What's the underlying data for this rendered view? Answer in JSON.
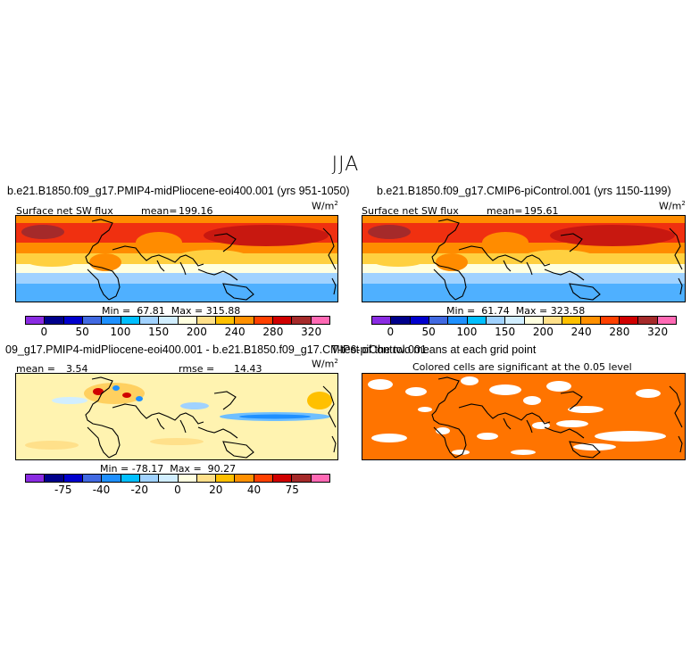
{
  "season": "JJA",
  "panels": {
    "p1": {
      "case": "b.e21.B1850.f09_g17.PMIP4-midPliocene-eoi400.001 (yrs 951-1050)",
      "variable": "Surface net SW flux",
      "mean_label": "mean=",
      "mean_value": "199.16",
      "units": "W/m",
      "units_exp": "2",
      "min_label": "Min =",
      "min_value": "67.81",
      "max_label": "Max =",
      "max_value": "315.88"
    },
    "p2": {
      "case": "b.e21.B1850.f09_g17.CMIP6-piControl.001 (yrs 1150-1199)",
      "variable": "Surface net SW flux",
      "mean_label": "mean=",
      "mean_value": "195.61",
      "units": "W/m",
      "units_exp": "2",
      "min_label": "Min =",
      "min_value": "61.74",
      "max_label": "Max =",
      "max_value": "323.58"
    },
    "p3": {
      "case": "09_g17.PMIP4-midPliocene-eoi400.001 - b.e21.B1850.f09_g17.CMIP6-piControl.001",
      "mean_label": "mean =",
      "mean_value": "3.54",
      "rmse_label": "rmse =",
      "rmse_value": "14.43",
      "units": "W/m",
      "units_exp": "2",
      "min_label": "Min =",
      "min_value": "-78.17",
      "max_label": "Max =",
      "max_value": "90.27"
    },
    "p4": {
      "title": "T-test of the two means at each grid point",
      "subtitle": "Colored cells are significant at the 0.05 level"
    }
  },
  "colorbars": {
    "abs": {
      "colors": [
        "#8a2be2",
        "#00008b",
        "#0000cd",
        "#4169e1",
        "#1e90ff",
        "#00bfff",
        "#a0d2ff",
        "#d1eeff",
        "#ffffe0",
        "#ffe08a",
        "#ffc000",
        "#ff9000",
        "#ff4000",
        "#d00000",
        "#a52a2a",
        "#ff69b4"
      ],
      "labels": [
        "0",
        "50",
        "100",
        "150",
        "200",
        "240",
        "280",
        "320"
      ]
    },
    "diff": {
      "colors": [
        "#8a2be2",
        "#00008b",
        "#0000cd",
        "#4169e1",
        "#1e90ff",
        "#00bfff",
        "#a0d2ff",
        "#d1eeff",
        "#ffffe0",
        "#ffe08a",
        "#ffc000",
        "#ff9000",
        "#ff4000",
        "#d00000",
        "#a52a2a",
        "#ff69b4"
      ],
      "labels": [
        "-75",
        "-40",
        "-20",
        "0",
        "20",
        "40",
        "75"
      ]
    }
  },
  "map_colors": {
    "tropic_high": "#f03010",
    "orange": "#ff8c00",
    "yellow": "#ffd040",
    "pale": "#ffffe0",
    "lightblue": "#a0d2ff",
    "blue": "#4fb0ff",
    "diff_bg": "#fff3b0",
    "sig": "#ff7400"
  }
}
